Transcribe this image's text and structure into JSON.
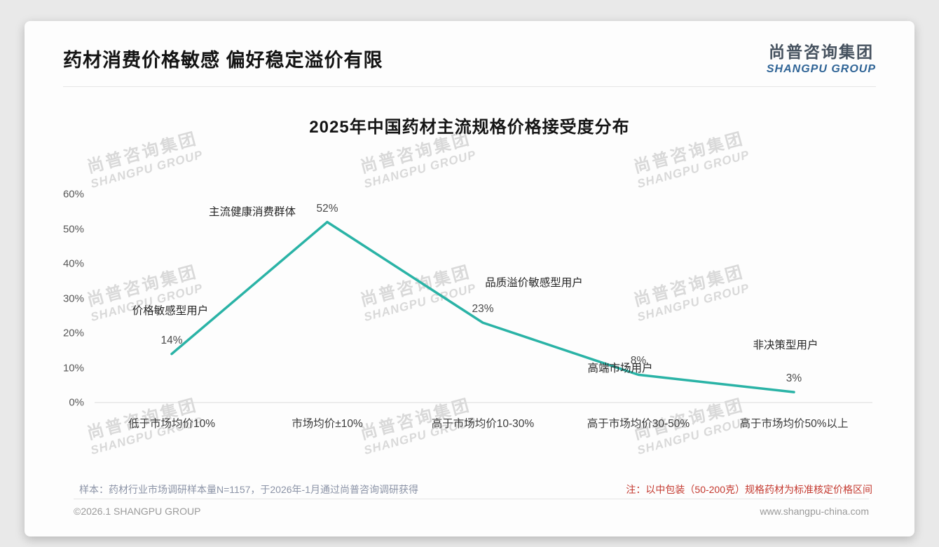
{
  "header": {
    "title": "药材消费价格敏感 偏好稳定溢价有限",
    "logo": {
      "cn": "尚普咨询集团",
      "en": "SHANGPU GROUP"
    }
  },
  "watermark": {
    "line1": "尚普咨询集团",
    "line2": "SHANGPU GROUP"
  },
  "chart_data": {
    "type": "line",
    "title": "2025年中国药材主流规格价格接受度分布",
    "categories": [
      "低于市场均价10%",
      "市场均价±10%",
      "高于市场均价10-30%",
      "高于市场均价30-50%",
      "高于市场均价50%以上"
    ],
    "values": [
      14,
      52,
      23,
      8,
      3
    ],
    "value_labels": [
      "14%",
      "52%",
      "23%",
      "8%",
      "3%"
    ],
    "annotations": [
      "价格敏感型用户",
      "主流健康消费群体",
      "品质溢价敏感型用户",
      "高端市场用户",
      "非决策型用户"
    ],
    "yticks": [
      "0%",
      "10%",
      "20%",
      "30%",
      "40%",
      "50%",
      "60%"
    ],
    "ylim": [
      0,
      60
    ],
    "xlabel": "",
    "ylabel": "",
    "grid": false,
    "legend": "none",
    "line_color": "#2ab3a6"
  },
  "footer": {
    "sample_note": "样本：药材行业市场调研样本量N=1157，于2026年-1月通过尚普咨询调研获得",
    "spec_note": "注：以中包装（50-200克）规格药材为标准核定价格区间",
    "copyright": "©2026.1 SHANGPU GROUP",
    "website": "www.shangpu-china.com"
  }
}
